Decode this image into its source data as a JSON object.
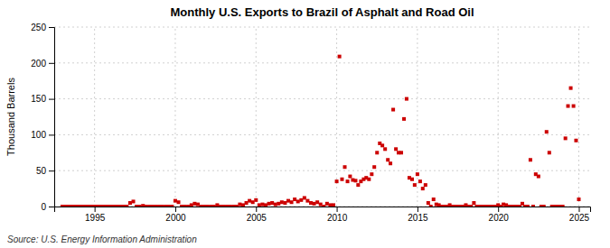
{
  "chart_data": {
    "type": "scatter",
    "title": "Monthly U.S. Exports to Brazil of Asphalt and Road Oil",
    "y_label": "Thousand Barrels",
    "source": "Source: U.S. Energy Information Administration",
    "color": "#cc0000",
    "marker": "square",
    "grid": true,
    "xlim": [
      1992.5,
      2025.7
    ],
    "xticks": [
      1995,
      2000,
      2005,
      2010,
      2015,
      2020,
      2025
    ],
    "ylim": [
      0,
      250
    ],
    "yticks": [
      0,
      50,
      100,
      150,
      200,
      250
    ],
    "x": [
      1993.0,
      1993.1,
      1993.2,
      1993.3,
      1993.4,
      1993.5,
      1993.6,
      1993.7,
      1993.8,
      1993.9,
      1993.95,
      1994.0,
      1994.1,
      1994.2,
      1994.3,
      1994.4,
      1994.5,
      1994.6,
      1994.7,
      1994.8,
      1994.9,
      1995.0,
      1995.1,
      1995.2,
      1995.3,
      1995.4,
      1995.5,
      1995.6,
      1995.7,
      1995.8,
      1995.9,
      1996.0,
      1996.1,
      1996.2,
      1996.3,
      1996.4,
      1996.5,
      1996.6,
      1996.7,
      1996.8,
      1996.9,
      1997.0,
      1997.2,
      1997.4,
      1997.6,
      1997.8,
      1998.0,
      1998.2,
      1998.4,
      1998.6,
      1998.8,
      1999.0,
      1999.2,
      1999.4,
      1999.6,
      1999.8,
      2000.0,
      2000.2,
      2000.4,
      2000.6,
      2000.8,
      2001.0,
      2001.2,
      2001.4,
      2001.6,
      2001.8,
      2002.0,
      2002.2,
      2002.4,
      2002.6,
      2002.8,
      2003.0,
      2003.2,
      2003.4,
      2003.6,
      2003.8,
      2004.0,
      2004.2,
      2004.4,
      2004.6,
      2004.8,
      2005.0,
      2005.2,
      2005.4,
      2005.6,
      2005.8,
      2006.0,
      2006.2,
      2006.4,
      2006.6,
      2006.8,
      2007.0,
      2007.2,
      2007.4,
      2007.6,
      2007.8,
      2008.0,
      2008.2,
      2008.4,
      2008.6,
      2008.8,
      2009.0,
      2009.2,
      2009.4,
      2009.6,
      2009.8,
      2010.0,
      2010.17,
      2010.33,
      2010.5,
      2010.67,
      2010.83,
      2011.0,
      2011.17,
      2011.33,
      2011.5,
      2011.67,
      2011.83,
      2012.0,
      2012.17,
      2012.33,
      2012.5,
      2012.67,
      2012.83,
      2013.0,
      2013.17,
      2013.33,
      2013.5,
      2013.67,
      2013.83,
      2014.0,
      2014.17,
      2014.33,
      2014.5,
      2014.67,
      2014.83,
      2015.0,
      2015.17,
      2015.33,
      2015.5,
      2015.67,
      2015.83,
      2016.0,
      2016.17,
      2016.33,
      2016.5,
      2016.67,
      2016.83,
      2017.0,
      2017.17,
      2017.33,
      2017.5,
      2017.67,
      2017.83,
      2018.0,
      2018.17,
      2018.33,
      2018.5,
      2018.67,
      2018.83,
      2019.0,
      2019.17,
      2019.33,
      2019.5,
      2019.67,
      2019.83,
      2020.0,
      2020.17,
      2020.33,
      2020.5,
      2020.67,
      2020.83,
      2021.0,
      2021.17,
      2021.33,
      2021.5,
      2021.67,
      2021.83,
      2022.0,
      2022.17,
      2022.33,
      2022.5,
      2022.67,
      2022.83,
      2023.0,
      2023.17,
      2023.33,
      2023.5,
      2023.67,
      2023.83,
      2024.0,
      2024.17,
      2024.33,
      2024.5,
      2024.67,
      2024.83,
      2025.0
    ],
    "values": [
      0,
      0,
      0,
      0,
      0,
      0,
      0,
      0,
      0,
      0,
      0,
      0,
      0,
      0,
      0,
      0,
      0,
      0,
      0,
      0,
      0,
      0,
      0,
      0,
      0,
      0,
      0,
      0,
      0,
      0,
      0,
      0,
      0,
      0,
      0,
      0,
      0,
      0,
      0,
      0,
      0,
      0,
      5,
      7,
      0,
      0,
      1,
      0,
      0,
      0,
      0,
      0,
      0,
      0,
      0,
      0,
      8,
      6,
      0,
      0,
      0,
      2,
      4,
      3,
      0,
      0,
      0,
      0,
      0,
      2,
      0,
      0,
      0,
      0,
      0,
      0,
      3,
      2,
      5,
      8,
      6,
      9,
      2,
      3,
      2,
      4,
      5,
      3,
      4,
      6,
      5,
      8,
      6,
      10,
      7,
      9,
      12,
      8,
      5,
      4,
      6,
      3,
      0,
      4,
      2,
      2,
      35,
      209,
      38,
      55,
      35,
      42,
      37,
      36,
      30,
      35,
      38,
      40,
      38,
      45,
      55,
      75,
      88,
      85,
      80,
      65,
      60,
      135,
      80,
      75,
      75,
      122,
      150,
      40,
      38,
      30,
      45,
      35,
      25,
      30,
      5,
      0,
      10,
      3,
      2,
      0,
      0,
      0,
      2,
      0,
      0,
      0,
      0,
      0,
      2,
      0,
      0,
      5,
      0,
      0,
      0,
      0,
      0,
      0,
      0,
      0,
      2,
      0,
      3,
      2,
      0,
      0,
      0,
      0,
      0,
      4,
      0,
      0,
      65,
      0,
      45,
      42,
      0,
      0,
      104,
      75,
      0,
      0,
      0,
      0,
      0,
      95,
      140,
      165,
      140,
      92,
      10
    ]
  }
}
